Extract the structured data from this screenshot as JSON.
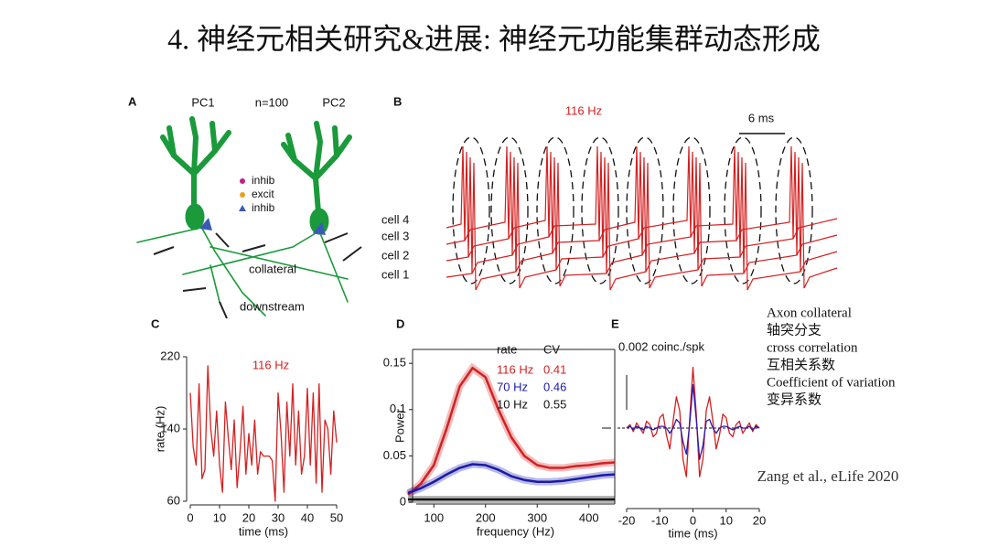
{
  "title": "4. 神经元相关研究&进展: 神经元功能集群动态形成",
  "panel_a": {
    "label": "A",
    "pc1": "PC1",
    "n": "n=100",
    "pc2": "PC2",
    "legend": [
      "inhib",
      "excit",
      "inhib"
    ],
    "collateral": "collateral",
    "downstream": "downstream"
  },
  "panel_b": {
    "label": "B",
    "rate": "116 Hz",
    "scale": "6 ms",
    "cells": [
      "cell 4",
      "cell 3",
      "cell 2",
      "cell 1"
    ]
  },
  "notes": [
    "Axon collateral",
    "轴突分支",
    "cross correlation",
    "互相关系数",
    "Coefficient of variation",
    "变异系数"
  ],
  "citation": "Zang et al., eLife 2020",
  "chart_data": [
    {
      "type": "line",
      "panel": "C",
      "annotation": "116 Hz",
      "x_label": "time (ms)",
      "y_label": "rate (Hz)",
      "color": "#d42020",
      "x": [
        0,
        1,
        2,
        3,
        4,
        5,
        6,
        7,
        8,
        9,
        10,
        11,
        12,
        13,
        14,
        15,
        16,
        17,
        18,
        19,
        20,
        21,
        22,
        23,
        24,
        25,
        26,
        27,
        28,
        29,
        30,
        31,
        32,
        33,
        34,
        35,
        36,
        37,
        38,
        39,
        40,
        41,
        42,
        43,
        44,
        45,
        46,
        47,
        48,
        49,
        50
      ],
      "values": [
        180,
        120,
        100,
        190,
        85,
        95,
        210,
        140,
        110,
        160,
        100,
        70,
        170,
        130,
        95,
        150,
        75,
        115,
        165,
        90,
        135,
        100,
        150,
        90,
        115,
        110,
        110,
        110,
        105,
        60,
        180,
        135,
        70,
        170,
        110,
        190,
        100,
        160,
        90,
        110,
        185,
        100,
        180,
        80,
        190,
        70,
        150,
        140,
        90,
        160,
        125
      ],
      "xlim": [
        0,
        50
      ],
      "ylim": [
        60,
        220
      ],
      "xticks": [
        0,
        10,
        20,
        30,
        40,
        50
      ],
      "yticks": [
        60,
        140,
        220
      ]
    },
    {
      "type": "line",
      "panel": "D",
      "x_label": "frequency (Hz)",
      "y_label": "Power",
      "legend_header": [
        "rate",
        "CV"
      ],
      "x": [
        50,
        75,
        100,
        125,
        150,
        175,
        200,
        225,
        250,
        275,
        300,
        325,
        350,
        375,
        400,
        425,
        450
      ],
      "series": [
        {
          "name": "116 Hz",
          "cv": 0.41,
          "color": "#d42020",
          "values": [
            0.008,
            0.02,
            0.04,
            0.08,
            0.125,
            0.145,
            0.135,
            0.1,
            0.07,
            0.05,
            0.04,
            0.037,
            0.037,
            0.039,
            0.04,
            0.042,
            0.043
          ]
        },
        {
          "name": "70 Hz",
          "cv": 0.46,
          "color": "#1a1aa8",
          "values": [
            0.01,
            0.015,
            0.022,
            0.03,
            0.037,
            0.041,
            0.04,
            0.035,
            0.028,
            0.024,
            0.022,
            0.022,
            0.023,
            0.025,
            0.027,
            0.029,
            0.03
          ]
        },
        {
          "name": "10 Hz",
          "cv": 0.55,
          "color": "#111111",
          "values": [
            0.003,
            0.003,
            0.003,
            0.003,
            0.003,
            0.003,
            0.003,
            0.003,
            0.003,
            0.003,
            0.003,
            0.003,
            0.003,
            0.003,
            0.003,
            0.003,
            0.003
          ]
        }
      ],
      "xlim": [
        66,
        450
      ],
      "ylim": [
        0,
        0.165
      ],
      "xticks": [
        100,
        200,
        300,
        400
      ],
      "yticks": [
        0,
        0.05,
        0.1,
        0.15
      ]
    },
    {
      "type": "line",
      "panel": "E",
      "x_label": "time (ms)",
      "scale_label": "0.002 coinc./spk",
      "x": [
        -20,
        -19,
        -18,
        -17,
        -16,
        -15,
        -14,
        -13,
        -12,
        -11,
        -10,
        -9,
        -8,
        -7,
        -6,
        -5,
        -4,
        -3,
        -2,
        -1,
        0,
        1,
        2,
        3,
        4,
        5,
        6,
        7,
        8,
        9,
        10,
        11,
        12,
        13,
        14,
        15,
        16,
        17,
        18,
        19,
        20
      ],
      "series": [
        {
          "color": "#d42020",
          "values": [
            0,
            0.0002,
            -0.0002,
            0.0003,
            0,
            -0.0003,
            0.0004,
            0.0002,
            -0.0005,
            -0.0003,
            0.0006,
            0.0008,
            -0.0004,
            -0.0012,
            0.0004,
            0.0018,
            0.001,
            -0.0018,
            -0.0028,
            0.0005,
            0.0035,
            0.0008,
            -0.0028,
            -0.0018,
            0.001,
            0.0018,
            0.0004,
            -0.0012,
            -0.0004,
            0.0008,
            0.0006,
            -0.0003,
            -0.0005,
            0.0002,
            0.0004,
            -0.0003,
            0,
            0.0003,
            -0.0002,
            0.0002,
            0
          ]
        },
        {
          "color": "#2a1ab0",
          "values": [
            0,
            0.0001,
            -0.0001,
            0.0001,
            0,
            -0.0001,
            0.0001,
            0,
            -0.0001,
            0,
            0.0001,
            0.0001,
            0,
            -0.0003,
            0,
            0.0005,
            0.0003,
            -0.0008,
            -0.0015,
            0.0002,
            0.0025,
            0.0005,
            -0.0018,
            -0.001,
            0.0004,
            0.0005,
            0,
            -0.0003,
            0,
            0.0001,
            0.0001,
            0,
            -0.0001,
            0,
            0.0001,
            0,
            0,
            0.0001,
            -0.0001,
            0.0001,
            0
          ]
        }
      ],
      "xlim": [
        -20,
        20
      ],
      "ylim": [
        -0.004,
        0.004
      ],
      "xticks": [
        -20,
        -10,
        0,
        10,
        20
      ]
    }
  ]
}
